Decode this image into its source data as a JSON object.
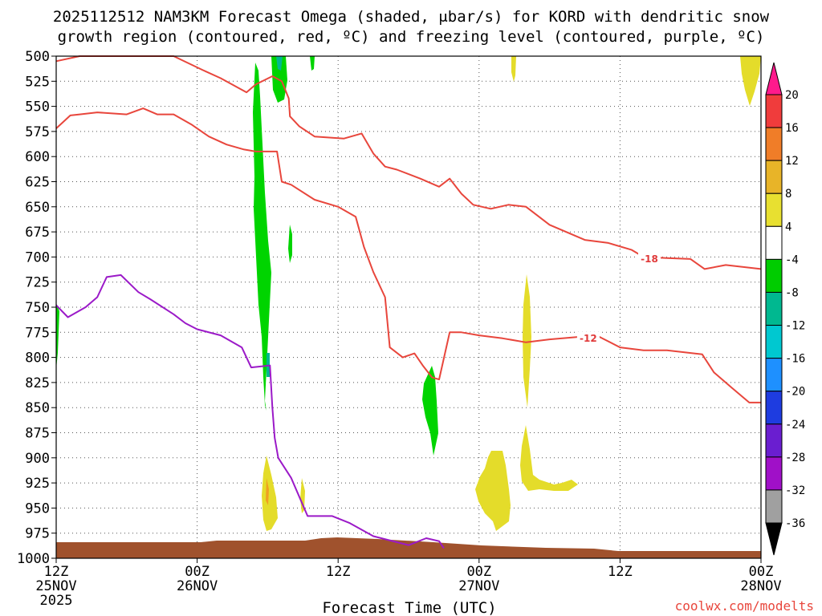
{
  "title_line1": "2025112512 NAM3KM Forecast Omega (shaded, μbar/s) for KORD with dendritic snow",
  "title_line2": "growth region (contoured, red, ºC) and freezing level (contoured, purple, ºC)",
  "xlabel": "Forecast Time (UTC)",
  "credit": "coolwx.com/modelts",
  "colorbar": {
    "labels": [
      "20",
      "16",
      "12",
      "8",
      "4",
      "-4",
      "-8",
      "-12",
      "-16",
      "-20",
      "-24",
      "-28",
      "-32",
      "-36"
    ],
    "colors": [
      "#ff1a8c",
      "#f03c3c",
      "#f07d28",
      "#e8b428",
      "#e8e030",
      "#ffffff",
      "#00cc00",
      "#00b890",
      "#00c8d0",
      "#1e90ff",
      "#1e3ce0",
      "#6a1ed0",
      "#a010c8",
      "#a0a0a0",
      "#000000"
    ]
  },
  "chart_data": {
    "type": "contour",
    "title": "2025112512 NAM3KM Forecast Omega (shaded, μbar/s) for KORD with dendritic snow growth region (contoured, red, ºC) and freezing level (contoured, purple, ºC)",
    "xlabel": "Forecast Time (UTC)",
    "ylabel": "",
    "x_range_hours": [
      0,
      60
    ],
    "y_range_hpa": [
      500,
      1000
    ],
    "y_ticks": [
      500,
      525,
      550,
      575,
      600,
      625,
      650,
      675,
      700,
      725,
      750,
      775,
      800,
      825,
      850,
      875,
      900,
      925,
      950,
      975,
      1000
    ],
    "x_ticks": [
      {
        "hour": 0,
        "lines": [
          "12Z",
          "25NOV",
          "2025"
        ]
      },
      {
        "hour": 12,
        "lines": [
          "00Z",
          "26NOV"
        ]
      },
      {
        "hour": 24,
        "lines": [
          "12Z"
        ]
      },
      {
        "hour": 36,
        "lines": [
          "00Z",
          "27NOV"
        ]
      },
      {
        "hour": 48,
        "lines": [
          "12Z"
        ]
      },
      {
        "hour": 60,
        "lines": [
          "00Z",
          "28NOV"
        ]
      }
    ],
    "grid": true,
    "contour_labels": [
      {
        "text": "-18",
        "hour": 50.5,
        "hpa": 702
      },
      {
        "text": "-12",
        "hour": 45.3,
        "hpa": 781
      }
    ],
    "series": [
      {
        "color": "#e8463c",
        "points": [
          [
            0,
            505
          ],
          [
            2,
            500
          ],
          [
            5,
            500
          ],
          [
            10,
            500
          ],
          [
            12.5,
            514
          ],
          [
            14,
            522
          ],
          [
            16.2,
            536
          ],
          [
            17,
            528
          ],
          [
            18.4,
            520
          ],
          [
            19.2,
            525
          ],
          [
            19.8,
            542
          ],
          [
            19.9,
            560
          ],
          [
            20.7,
            570
          ],
          [
            22,
            580
          ],
          [
            24.5,
            582
          ],
          [
            26,
            577
          ],
          [
            27,
            597
          ],
          [
            28,
            610
          ],
          [
            29,
            613
          ],
          [
            31,
            622
          ],
          [
            32.6,
            630
          ],
          [
            33.5,
            622
          ],
          [
            34.5,
            637
          ],
          [
            35.5,
            648
          ],
          [
            37,
            652
          ],
          [
            38.5,
            648
          ],
          [
            40,
            650
          ],
          [
            42,
            668
          ],
          [
            45,
            683
          ],
          [
            47,
            686
          ],
          [
            49,
            693
          ],
          [
            50,
            700
          ],
          [
            52,
            701
          ],
          [
            54,
            702
          ],
          [
            55.2,
            712
          ],
          [
            57,
            708
          ],
          [
            60,
            712
          ]
        ]
      },
      {
        "color": "#e8463c",
        "points": [
          [
            0,
            572
          ],
          [
            1.2,
            559
          ],
          [
            2,
            558
          ],
          [
            3.5,
            556
          ],
          [
            6,
            558
          ],
          [
            7.4,
            552
          ],
          [
            8.6,
            558
          ],
          [
            10,
            558
          ],
          [
            11.5,
            568
          ],
          [
            13,
            580
          ],
          [
            14.5,
            588
          ],
          [
            16,
            593
          ],
          [
            17,
            595
          ],
          [
            18.8,
            595
          ],
          [
            19.2,
            625
          ],
          [
            20,
            628
          ],
          [
            22,
            643
          ],
          [
            24,
            650
          ],
          [
            25.5,
            660
          ],
          [
            26.2,
            690
          ],
          [
            27,
            715
          ],
          [
            28,
            740
          ],
          [
            28.4,
            790
          ],
          [
            29.5,
            800
          ],
          [
            30.5,
            796
          ],
          [
            31.2,
            808
          ],
          [
            32,
            820
          ],
          [
            32.6,
            822
          ],
          [
            33.5,
            775
          ],
          [
            34.5,
            775
          ],
          [
            36,
            778
          ],
          [
            38,
            781
          ],
          [
            40,
            785
          ],
          [
            42,
            782
          ],
          [
            44,
            780
          ],
          [
            46,
            778
          ],
          [
            48,
            790
          ],
          [
            50,
            793
          ],
          [
            52,
            793
          ],
          [
            55,
            797
          ],
          [
            56,
            815
          ],
          [
            57.5,
            830
          ],
          [
            59,
            845
          ],
          [
            60,
            845
          ]
        ]
      },
      {
        "color": "#9b1ac8",
        "points": [
          [
            0,
            748
          ],
          [
            1,
            760
          ],
          [
            2.5,
            750
          ],
          [
            3.5,
            740
          ],
          [
            4.3,
            720
          ],
          [
            5.5,
            718
          ],
          [
            7,
            735
          ],
          [
            8,
            742
          ],
          [
            10,
            757
          ],
          [
            11,
            766
          ],
          [
            12,
            772
          ],
          [
            14,
            778
          ],
          [
            15.8,
            790
          ],
          [
            16.6,
            810
          ],
          [
            18.2,
            808
          ],
          [
            18.4,
            850
          ],
          [
            18.6,
            880
          ],
          [
            18.9,
            900
          ],
          [
            20,
            920
          ],
          [
            21.4,
            958
          ],
          [
            23.5,
            958
          ],
          [
            25,
            965
          ],
          [
            27,
            978
          ],
          [
            30,
            987
          ],
          [
            31.5,
            980
          ],
          [
            32.6,
            983
          ],
          [
            33,
            990
          ]
        ]
      }
    ],
    "shaded_regions": [
      {
        "value_range": [
          -8,
          -4
        ],
        "color": "#00cc00",
        "description": "rising motion column near hour 17-19"
      },
      {
        "value_range": [
          4,
          8
        ],
        "color": "#e8e030",
        "description": "sinking motion patches near surface and aloft"
      }
    ],
    "terrain": {
      "color": "#a0522d",
      "description": "surface below ground level near 985-1000 hPa"
    }
  }
}
